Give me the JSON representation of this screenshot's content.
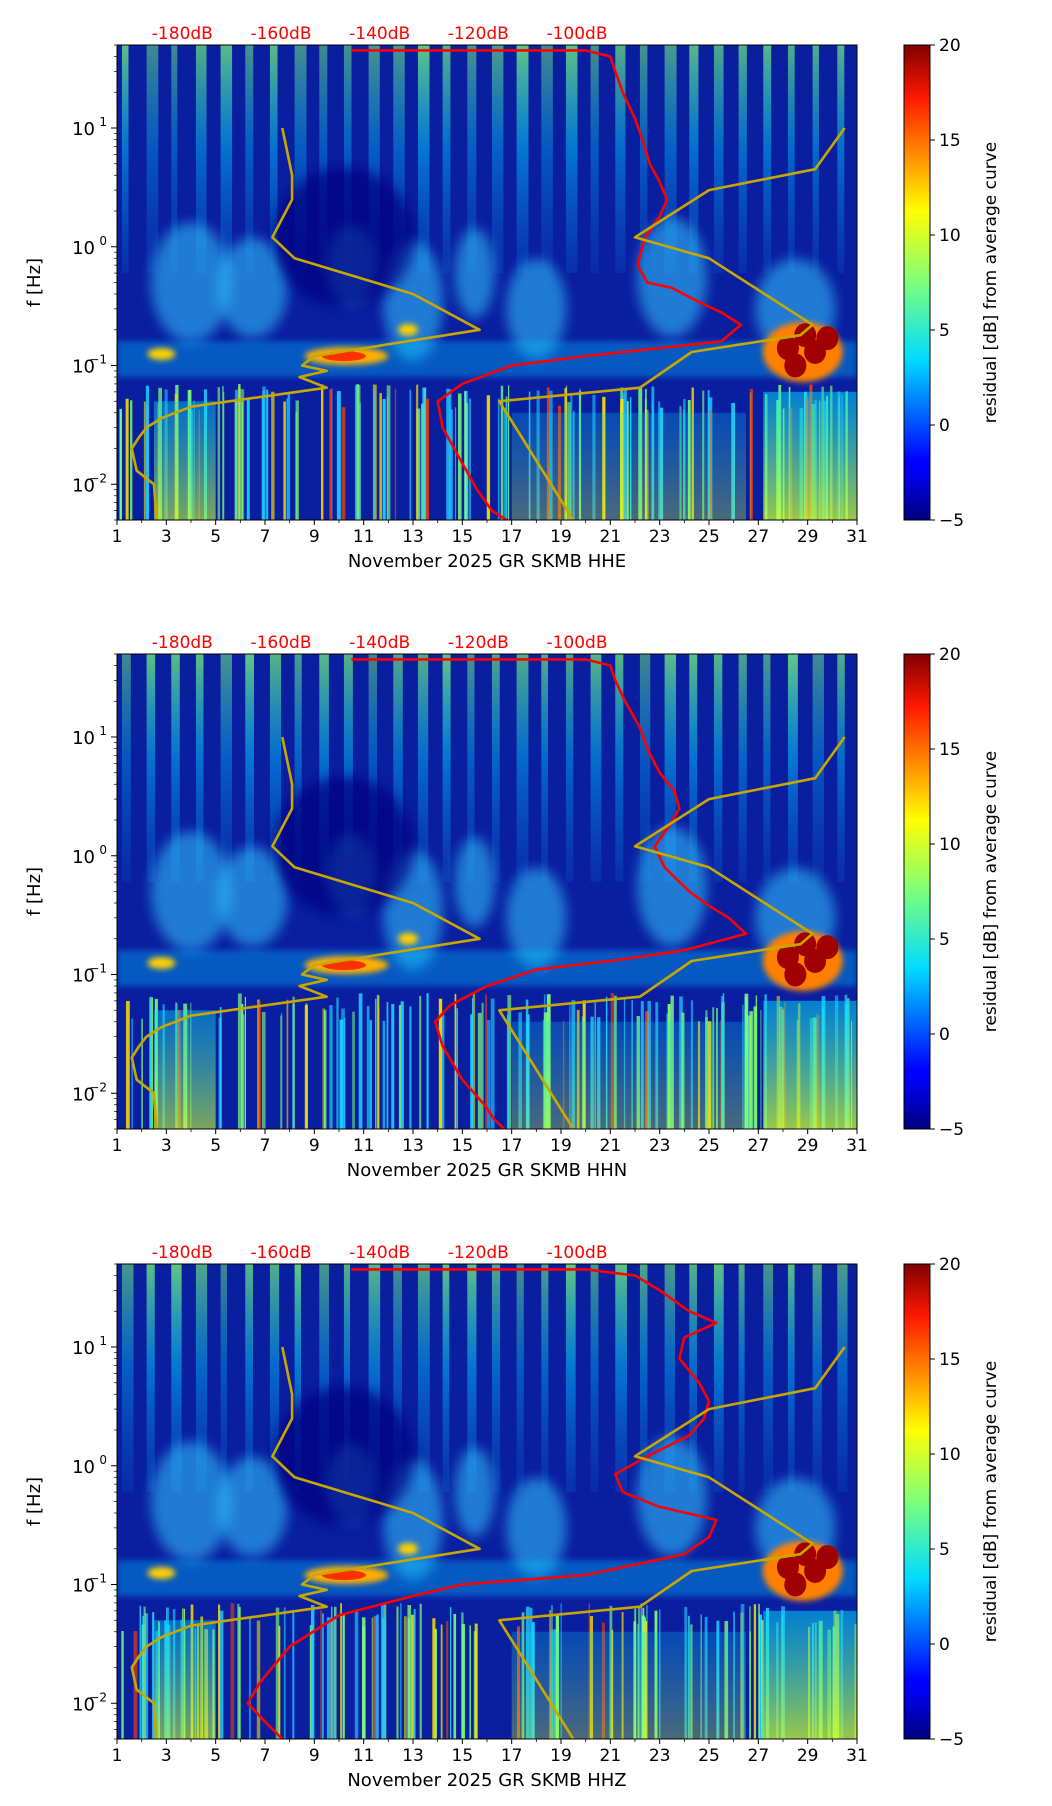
{
  "chart_data": [
    {
      "type": "heatmap",
      "channel": "HHE",
      "xlabel": "November 2025 GR SKMB  HHE",
      "ylabel": "f [Hz]",
      "colorbar_label": "residual [dB] from average curve",
      "colorbar_range": [
        -5,
        20
      ],
      "colorbar_ticks": [
        "20",
        "15",
        "10",
        "5",
        "0",
        "−5"
      ],
      "colorbar_tick_values": [
        20,
        15,
        10,
        5,
        0,
        -5
      ],
      "x_ticks": [
        "1",
        "3",
        "5",
        "7",
        "9",
        "11",
        "13",
        "15",
        "17",
        "19",
        "21",
        "23",
        "25",
        "27",
        "29",
        "31"
      ],
      "xlim": [
        1,
        31
      ],
      "ylim_hz": [
        0.005,
        50
      ],
      "y_scale": "log",
      "y_ticks": [
        {
          "base": "10",
          "exp": "1",
          "value": 10
        },
        {
          "base": "10",
          "exp": "0",
          "value": 1
        },
        {
          "base": "10",
          "exp": "−1",
          "value": 0.1
        },
        {
          "base": "10",
          "exp": "−2",
          "value": 0.01
        }
      ],
      "top_axis_labels": [
        "-180dB",
        "-160dB",
        "-140dB",
        "-120dB",
        "-100dB"
      ],
      "top_axis_values_db": [
        -180,
        -160,
        -140,
        -120,
        -100
      ],
      "top_axis_label_color": "#ff0000",
      "series": [
        {
          "color": "#ff0000",
          "points": [
            [
              10.5,
              45
            ],
            [
              20,
              45
            ],
            [
              21,
              40
            ],
            [
              21.2,
              30
            ],
            [
              21.5,
              20
            ],
            [
              22,
              12
            ],
            [
              22.3,
              8
            ],
            [
              22.6,
              5
            ],
            [
              23,
              3.5
            ],
            [
              23.3,
              2.5
            ],
            [
              23,
              1.8
            ],
            [
              22.4,
              1.2
            ],
            [
              22.1,
              0.7
            ],
            [
              22.5,
              0.5
            ],
            [
              23.5,
              0.45
            ],
            [
              24.5,
              0.35
            ],
            [
              25.5,
              0.28
            ],
            [
              26.3,
              0.22
            ],
            [
              25.5,
              0.16
            ],
            [
              23,
              0.14
            ],
            [
              20,
              0.12
            ],
            [
              17,
              0.1
            ],
            [
              15,
              0.07
            ],
            [
              14,
              0.05
            ],
            [
              14.2,
              0.03
            ],
            [
              15,
              0.015
            ],
            [
              15.6,
              0.009
            ],
            [
              16.2,
              0.006
            ],
            [
              16.8,
              0.005
            ]
          ]
        },
        {
          "color": "#c8a800",
          "points": [
            [
              7.7,
              10
            ],
            [
              8.1,
              4
            ],
            [
              8.1,
              2.5
            ],
            [
              7.3,
              1.2
            ],
            [
              8.2,
              0.8
            ],
            [
              13,
              0.4
            ],
            [
              15.7,
              0.2
            ],
            [
              9,
              0.12
            ],
            [
              8.5,
              0.1
            ],
            [
              9.5,
              0.09
            ],
            [
              8.4,
              0.08
            ],
            [
              9.5,
              0.065
            ],
            [
              4,
              0.045
            ],
            [
              2.8,
              0.036
            ],
            [
              2.2,
              0.03
            ],
            [
              1.9,
              0.025
            ],
            [
              1.6,
              0.02
            ],
            [
              1.8,
              0.013
            ],
            [
              2.5,
              0.01
            ],
            [
              2.6,
              0.005
            ]
          ]
        },
        {
          "color": "#c8a800",
          "points": [
            [
              19.5,
              0.005
            ],
            [
              16.5,
              0.05
            ],
            [
              22.2,
              0.065
            ],
            [
              24.3,
              0.13
            ],
            [
              28.7,
              0.18
            ],
            [
              29.2,
              0.22
            ],
            [
              25,
              0.8
            ],
            [
              22,
              1.2
            ],
            [
              25,
              3
            ],
            [
              29.3,
              4.5
            ],
            [
              30.5,
              10
            ]
          ]
        }
      ]
    },
    {
      "type": "heatmap",
      "channel": "HHN",
      "xlabel": "November 2025 GR SKMB  HHN",
      "ylabel": "f [Hz]",
      "colorbar_label": "residual [dB] from average curve",
      "colorbar_range": [
        -5,
        20
      ],
      "colorbar_ticks": [
        "20",
        "15",
        "10",
        "5",
        "0",
        "−5"
      ],
      "colorbar_tick_values": [
        20,
        15,
        10,
        5,
        0,
        -5
      ],
      "x_ticks": [
        "1",
        "3",
        "5",
        "7",
        "9",
        "11",
        "13",
        "15",
        "17",
        "19",
        "21",
        "23",
        "25",
        "27",
        "29",
        "31"
      ],
      "xlim": [
        1,
        31
      ],
      "ylim_hz": [
        0.005,
        50
      ],
      "y_scale": "log",
      "y_ticks": [
        {
          "base": "10",
          "exp": "1",
          "value": 10
        },
        {
          "base": "10",
          "exp": "0",
          "value": 1
        },
        {
          "base": "10",
          "exp": "−1",
          "value": 0.1
        },
        {
          "base": "10",
          "exp": "−2",
          "value": 0.01
        }
      ],
      "top_axis_labels": [
        "-180dB",
        "-160dB",
        "-140dB",
        "-120dB",
        "-100dB"
      ],
      "top_axis_values_db": [
        -180,
        -160,
        -140,
        -120,
        -100
      ],
      "top_axis_label_color": "#ff0000",
      "series": [
        {
          "color": "#ff0000",
          "points": [
            [
              10.5,
              45
            ],
            [
              20,
              45
            ],
            [
              21,
              40
            ],
            [
              21.2,
              30
            ],
            [
              21.6,
              20
            ],
            [
              22.2,
              12
            ],
            [
              22.5,
              8
            ],
            [
              23,
              5
            ],
            [
              23.6,
              3.5
            ],
            [
              23.8,
              2.5
            ],
            [
              23.4,
              1.8
            ],
            [
              22.8,
              1.2
            ],
            [
              23.2,
              0.8
            ],
            [
              24.2,
              0.5
            ],
            [
              25,
              0.38
            ],
            [
              25.8,
              0.3
            ],
            [
              26.5,
              0.22
            ],
            [
              24,
              0.16
            ],
            [
              21,
              0.13
            ],
            [
              18,
              0.11
            ],
            [
              16,
              0.08
            ],
            [
              14.5,
              0.055
            ],
            [
              13.9,
              0.04
            ],
            [
              14.2,
              0.025
            ],
            [
              15,
              0.013
            ],
            [
              15.9,
              0.008
            ],
            [
              16.3,
              0.006
            ],
            [
              16.7,
              0.005
            ]
          ]
        },
        {
          "color": "#c8a800",
          "points": [
            [
              7.7,
              10
            ],
            [
              8.1,
              4
            ],
            [
              8.1,
              2.5
            ],
            [
              7.3,
              1.2
            ],
            [
              8.2,
              0.8
            ],
            [
              13,
              0.4
            ],
            [
              15.7,
              0.2
            ],
            [
              9,
              0.12
            ],
            [
              8.5,
              0.1
            ],
            [
              9.5,
              0.09
            ],
            [
              8.4,
              0.08
            ],
            [
              9.5,
              0.065
            ],
            [
              4,
              0.045
            ],
            [
              2.8,
              0.036
            ],
            [
              2.2,
              0.03
            ],
            [
              1.9,
              0.025
            ],
            [
              1.6,
              0.02
            ],
            [
              1.8,
              0.013
            ],
            [
              2.5,
              0.01
            ],
            [
              2.6,
              0.005
            ]
          ]
        },
        {
          "color": "#c8a800",
          "points": [
            [
              19.5,
              0.005
            ],
            [
              16.5,
              0.05
            ],
            [
              22.2,
              0.065
            ],
            [
              24.3,
              0.13
            ],
            [
              28.7,
              0.18
            ],
            [
              29.2,
              0.22
            ],
            [
              25,
              0.8
            ],
            [
              22,
              1.2
            ],
            [
              25,
              3
            ],
            [
              29.3,
              4.5
            ],
            [
              30.5,
              10
            ]
          ]
        }
      ]
    },
    {
      "type": "heatmap",
      "channel": "HHZ",
      "xlabel": "November 2025 GR SKMB  HHZ",
      "ylabel": "f [Hz]",
      "colorbar_label": "residual [dB] from average curve",
      "colorbar_range": [
        -5,
        20
      ],
      "colorbar_ticks": [
        "20",
        "15",
        "10",
        "5",
        "0",
        "−5"
      ],
      "colorbar_tick_values": [
        20,
        15,
        10,
        5,
        0,
        -5
      ],
      "x_ticks": [
        "1",
        "3",
        "5",
        "7",
        "9",
        "11",
        "13",
        "15",
        "17",
        "19",
        "21",
        "23",
        "25",
        "27",
        "29",
        "31"
      ],
      "xlim": [
        1,
        31
      ],
      "ylim_hz": [
        0.005,
        50
      ],
      "y_scale": "log",
      "y_ticks": [
        {
          "base": "10",
          "exp": "1",
          "value": 10
        },
        {
          "base": "10",
          "exp": "0",
          "value": 1
        },
        {
          "base": "10",
          "exp": "−1",
          "value": 0.1
        },
        {
          "base": "10",
          "exp": "−2",
          "value": 0.01
        }
      ],
      "top_axis_labels": [
        "-180dB",
        "-160dB",
        "-140dB",
        "-120dB",
        "-100dB"
      ],
      "top_axis_values_db": [
        -180,
        -160,
        -140,
        -120,
        -100
      ],
      "top_axis_label_color": "#ff0000",
      "series": [
        {
          "color": "#ff0000",
          "points": [
            [
              10.5,
              45
            ],
            [
              20,
              45
            ],
            [
              22,
              40
            ],
            [
              23,
              30
            ],
            [
              24.2,
              20
            ],
            [
              25.3,
              16
            ],
            [
              24,
              12
            ],
            [
              23.8,
              8
            ],
            [
              24.6,
              5
            ],
            [
              25,
              3.5
            ],
            [
              24.8,
              2.5
            ],
            [
              24.2,
              1.8
            ],
            [
              22.5,
              1.2
            ],
            [
              21.2,
              0.85
            ],
            [
              21.5,
              0.6
            ],
            [
              23,
              0.45
            ],
            [
              25.3,
              0.35
            ],
            [
              25,
              0.25
            ],
            [
              24,
              0.18
            ],
            [
              20,
              0.12
            ],
            [
              15,
              0.1
            ],
            [
              13,
              0.08
            ],
            [
              10,
              0.055
            ],
            [
              8,
              0.03
            ],
            [
              6.8,
              0.015
            ],
            [
              6.3,
              0.01
            ],
            [
              7,
              0.007
            ],
            [
              7.7,
              0.005
            ]
          ]
        },
        {
          "color": "#c8a800",
          "points": [
            [
              7.7,
              10
            ],
            [
              8.1,
              4
            ],
            [
              8.1,
              2.5
            ],
            [
              7.3,
              1.2
            ],
            [
              8.2,
              0.8
            ],
            [
              13,
              0.4
            ],
            [
              15.7,
              0.2
            ],
            [
              9,
              0.12
            ],
            [
              8.5,
              0.1
            ],
            [
              9.5,
              0.09
            ],
            [
              8.4,
              0.08
            ],
            [
              9.5,
              0.065
            ],
            [
              4,
              0.045
            ],
            [
              2.8,
              0.036
            ],
            [
              2.2,
              0.03
            ],
            [
              1.9,
              0.025
            ],
            [
              1.6,
              0.02
            ],
            [
              1.8,
              0.013
            ],
            [
              2.5,
              0.01
            ],
            [
              2.6,
              0.005
            ]
          ]
        },
        {
          "color": "#c8a800",
          "points": [
            [
              19.5,
              0.005
            ],
            [
              16.5,
              0.05
            ],
            [
              22.2,
              0.065
            ],
            [
              24.3,
              0.13
            ],
            [
              28.7,
              0.18
            ],
            [
              29.2,
              0.22
            ],
            [
              25,
              0.8
            ],
            [
              22,
              1.2
            ],
            [
              25,
              3
            ],
            [
              29.3,
              4.5
            ],
            [
              30.5,
              10
            ]
          ]
        }
      ]
    }
  ]
}
